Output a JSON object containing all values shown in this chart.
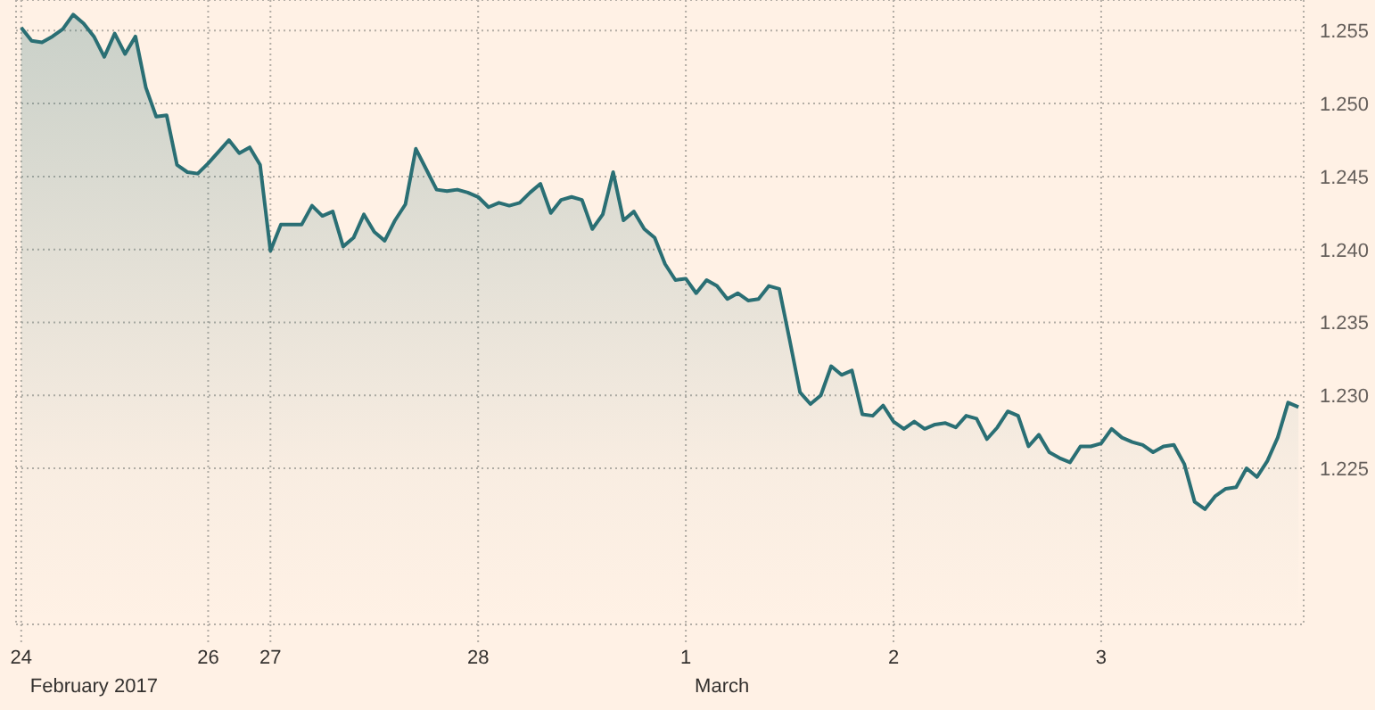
{
  "chart_data": {
    "type": "area",
    "annotations": [
      "February 2017",
      "March"
    ],
    "categories": [
      "24",
      null,
      null,
      null,
      null,
      null,
      null,
      null,
      null,
      null,
      null,
      null,
      null,
      null,
      null,
      null,
      null,
      null,
      "26",
      null,
      null,
      null,
      null,
      null,
      "27",
      null,
      null,
      null,
      null,
      null,
      null,
      null,
      null,
      null,
      null,
      null,
      null,
      null,
      null,
      null,
      null,
      null,
      null,
      null,
      "28",
      null,
      null,
      null,
      null,
      null,
      null,
      null,
      null,
      null,
      null,
      null,
      null,
      null,
      null,
      null,
      null,
      null,
      null,
      null,
      "1",
      null,
      null,
      null,
      null,
      null,
      null,
      null,
      null,
      null,
      null,
      null,
      null,
      null,
      null,
      null,
      null,
      null,
      null,
      null,
      "2",
      null,
      null,
      null,
      null,
      null,
      null,
      null,
      null,
      null,
      null,
      null,
      null,
      null,
      null,
      null,
      null,
      null,
      null,
      null,
      "3",
      null,
      null,
      null,
      null,
      null,
      null,
      null,
      null,
      null,
      null,
      null,
      null,
      null,
      null,
      null,
      null,
      null,
      null,
      null
    ],
    "series": [
      {
        "color": "#2a6f74",
        "values": [
          1.2552,
          1.2543,
          1.2542,
          1.2546,
          1.2551,
          1.2561,
          1.2555,
          1.2546,
          1.2532,
          1.2548,
          1.2534,
          1.2546,
          1.2511,
          1.2491,
          1.2492,
          1.2458,
          1.2453,
          1.2452,
          1.2459,
          1.2467,
          1.2475,
          1.2466,
          1.247,
          1.2458,
          1.2399,
          1.2417,
          1.2417,
          1.2417,
          1.243,
          1.2423,
          1.2426,
          1.2402,
          1.2408,
          1.2424,
          1.2412,
          1.2406,
          1.242,
          1.2431,
          1.2469,
          1.2455,
          1.2441,
          1.244,
          1.2441,
          1.2439,
          1.2436,
          1.2429,
          1.2432,
          1.243,
          1.2432,
          1.2439,
          1.2445,
          1.2425,
          1.2434,
          1.2436,
          1.2434,
          1.2414,
          1.2424,
          1.2453,
          1.242,
          1.2426,
          1.2414,
          1.2408,
          1.239,
          1.2379,
          1.238,
          1.237,
          1.2379,
          1.2375,
          1.2366,
          1.237,
          1.2365,
          1.2366,
          1.2375,
          1.2373,
          1.2338,
          1.2302,
          1.2294,
          1.23,
          1.232,
          1.2314,
          1.2317,
          1.2287,
          1.2286,
          1.2293,
          1.2282,
          1.2277,
          1.2282,
          1.2277,
          1.228,
          1.2281,
          1.2278,
          1.2286,
          1.2284,
          1.227,
          1.2278,
          1.2289,
          1.2286,
          1.2265,
          1.2273,
          1.2261,
          1.2257,
          1.2254,
          1.2265,
          1.2265,
          1.2267,
          1.2277,
          1.2271,
          1.2268,
          1.2266,
          1.2261,
          1.2265,
          1.2266,
          1.2253,
          1.2227,
          1.2222,
          1.2231,
          1.2236,
          1.2237,
          1.225,
          1.2244,
          1.2255,
          1.2271,
          1.2295,
          1.2292
        ]
      }
    ],
    "ylim": [
      1.2143,
      1.2571
    ],
    "yticks": [
      {
        "value": 1.225,
        "label": "1.225"
      },
      {
        "value": 1.23,
        "label": "1.230"
      },
      {
        "value": 1.235,
        "label": "1.235"
      },
      {
        "value": 1.24,
        "label": "1.240"
      },
      {
        "value": 1.245,
        "label": "1.245"
      },
      {
        "value": 1.25,
        "label": "1.250"
      },
      {
        "value": 1.255,
        "label": "1.255"
      }
    ],
    "grid": true,
    "legend": false,
    "marker": "none",
    "line_style": "solid"
  }
}
